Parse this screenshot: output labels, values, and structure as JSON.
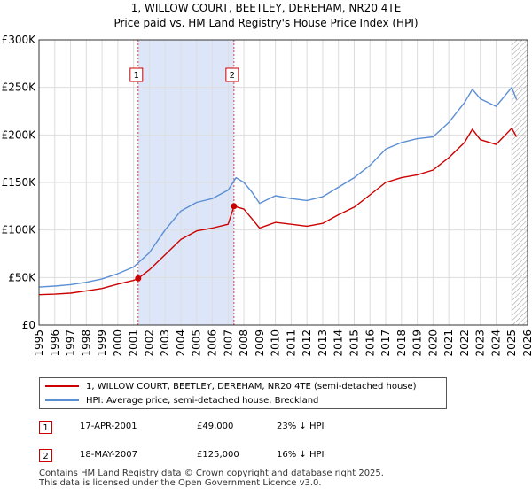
{
  "chart_data": {
    "type": "line",
    "title": "1, WILLOW COURT, BEETLEY, DEREHAM, NR20 4TE",
    "subtitle": "Price paid vs. HM Land Registry's House Price Index (HPI)",
    "xlabel": "",
    "ylabel": "",
    "xlim": [
      1995,
      2026
    ],
    "ylim": [
      0,
      300000
    ],
    "y_ticks": [
      {
        "value": 0,
        "label": "£0"
      },
      {
        "value": 50000,
        "label": "£50K"
      },
      {
        "value": 100000,
        "label": "£100K"
      },
      {
        "value": 150000,
        "label": "£150K"
      },
      {
        "value": 200000,
        "label": "£200K"
      },
      {
        "value": 250000,
        "label": "£250K"
      },
      {
        "value": 300000,
        "label": "£300K"
      }
    ],
    "x_ticks": [
      "1995",
      "1996",
      "1997",
      "1998",
      "1999",
      "2000",
      "2001",
      "2002",
      "2003",
      "2004",
      "2005",
      "2006",
      "2007",
      "2008",
      "2009",
      "2010",
      "2011",
      "2012",
      "2013",
      "2014",
      "2015",
      "2016",
      "2017",
      "2018",
      "2019",
      "2020",
      "2021",
      "2022",
      "2023",
      "2024",
      "2025",
      "2026"
    ],
    "grid": true,
    "series": [
      {
        "name": "1, WILLOW COURT, BEETLEY, DEREHAM, NR20 4TE (semi-detached house)",
        "color": "#cc0000",
        "x": [
          1995.0,
          1996.0,
          1997.0,
          1998.0,
          1999.0,
          2000.0,
          2001.0,
          2001.29,
          2002.0,
          2003.0,
          2004.0,
          2005.0,
          2006.0,
          2007.0,
          2007.37,
          2008.0,
          2008.5,
          2009.0,
          2009.5,
          2010.0,
          2011.0,
          2012.0,
          2013.0,
          2014.0,
          2015.0,
          2016.0,
          2017.0,
          2018.0,
          2019.0,
          2020.0,
          2021.0,
          2022.0,
          2022.5,
          2023.0,
          2024.0,
          2025.0,
          2025.3
        ],
        "y": [
          32000,
          32500,
          33500,
          36000,
          38500,
          43000,
          47000,
          49000,
          58000,
          74000,
          90000,
          99000,
          102000,
          106000,
          125000,
          122000,
          112000,
          102000,
          105000,
          108000,
          106000,
          104000,
          107000,
          116000,
          124000,
          137000,
          150000,
          155000,
          158000,
          163000,
          176000,
          192000,
          206000,
          195000,
          190000,
          207000,
          198000
        ]
      },
      {
        "name": "HPI: Average price, semi-detached house, Breckland",
        "color": "#5b8fd4",
        "x": [
          1995.0,
          1996.0,
          1997.0,
          1998.0,
          1999.0,
          2000.0,
          2001.0,
          2002.0,
          2003.0,
          2004.0,
          2005.0,
          2006.0,
          2007.0,
          2007.5,
          2008.0,
          2008.5,
          2009.0,
          2009.5,
          2010.0,
          2011.0,
          2012.0,
          2013.0,
          2014.0,
          2015.0,
          2016.0,
          2017.0,
          2018.0,
          2019.0,
          2020.0,
          2021.0,
          2022.0,
          2022.5,
          2023.0,
          2024.0,
          2025.0,
          2025.3
        ],
        "y": [
          40000,
          41000,
          42500,
          45000,
          48500,
          54000,
          61000,
          76000,
          100000,
          120000,
          129000,
          133000,
          142000,
          155000,
          150000,
          140000,
          128000,
          132000,
          136000,
          133000,
          131000,
          135000,
          145000,
          155000,
          168000,
          185000,
          192000,
          196000,
          198000,
          213000,
          234000,
          248000,
          238000,
          230000,
          250000,
          237000
        ]
      }
    ],
    "annotations": [
      {
        "label": "1",
        "x": 2001.29,
        "y": 49000,
        "date": "17-APR-2001",
        "price": "£49,000",
        "hpi_note": "23% ↓ HPI"
      },
      {
        "label": "2",
        "x": 2007.37,
        "y": 125000,
        "date": "18-MAY-2007",
        "price": "£125,000",
        "hpi_note": "16% ↓ HPI"
      }
    ],
    "shaded_range": [
      2001.29,
      2007.37
    ],
    "hatched_from": 2025.0,
    "legend_position": "bottom"
  },
  "legend": {
    "items": [
      {
        "label": "1, WILLOW COURT, BEETLEY, DEREHAM, NR20 4TE (semi-detached house)",
        "color": "#cc0000"
      },
      {
        "label": "HPI: Average price, semi-detached house, Breckland",
        "color": "#5b8fd4"
      }
    ]
  },
  "sales": [
    {
      "badge": "1",
      "date": "17-APR-2001",
      "price": "£49,000",
      "hpi": "23% ↓ HPI"
    },
    {
      "badge": "2",
      "date": "18-MAY-2007",
      "price": "£125,000",
      "hpi": "16% ↓ HPI"
    }
  ],
  "footer": {
    "line1": "Contains HM Land Registry data © Crown copyright and database right 2025.",
    "line2": "This data is licensed under the Open Government Licence v3.0."
  },
  "colors": {
    "price_line": "#cc0000",
    "hpi_line": "#5b8fd4",
    "shade": "#dde6f8",
    "grid": "#dddddd",
    "annotation_line": "#d04040"
  }
}
